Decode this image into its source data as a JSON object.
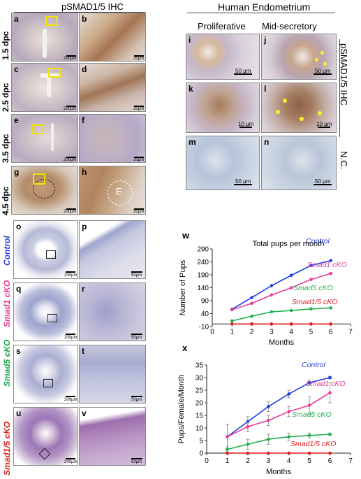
{
  "ihc_section": {
    "title": "pSMAD1/5 IHC",
    "rows": [
      {
        "label": "1.5 dpc",
        "left": "a",
        "right": "b",
        "left_scale": "200µm",
        "right_scale": "20µm"
      },
      {
        "label": "2.5 dpc",
        "left": "c",
        "right": "d",
        "left_scale": "200µm",
        "right_scale": "20µm"
      },
      {
        "label": "3.5 dpc",
        "left": "e",
        "right": "f",
        "left_scale": "200µm",
        "right_scale": "20µm"
      },
      {
        "label": "4.5 dpc",
        "left": "g",
        "right": "h",
        "left_scale": "200µm",
        "right_scale": "50µm"
      }
    ],
    "embryo_label": "E"
  },
  "human_section": {
    "title": "Human Endometrium",
    "col_proliferative": "Proliferative",
    "col_midsecretory": "Mid-secretory",
    "side_ihc": "pSMAD1/5 IHC",
    "side_nc": "N.C.",
    "panels": [
      {
        "id": "i",
        "scale": "50 µm"
      },
      {
        "id": "j",
        "scale": "50 µm"
      },
      {
        "id": "k",
        "scale": "10 µm"
      },
      {
        "id": "l",
        "scale": "10 µm"
      },
      {
        "id": "m",
        "scale": "50 µm"
      },
      {
        "id": "n",
        "scale": "50 µm"
      }
    ]
  },
  "histology_section": {
    "rows": [
      {
        "label": "Control",
        "color": "#2a3bd6",
        "left": "o",
        "right": "p",
        "left_scale": "200µm",
        "right_scale": "50µm"
      },
      {
        "label": "Smad1 cKO",
        "color": "#e6388f",
        "left": "q",
        "right": "r",
        "left_scale": "200µm",
        "right_scale": "50µm"
      },
      {
        "label": "Smad5 cKO",
        "color": "#19a84a",
        "left": "s",
        "right": "t",
        "left_scale": "200µm",
        "right_scale": "50µm"
      },
      {
        "label": "Smad1/5 cKO",
        "color": "#e0201b",
        "left": "u",
        "right": "v",
        "left_scale": "200µm",
        "right_scale": "50µm"
      }
    ]
  },
  "chart_data": [
    {
      "panel": "w",
      "type": "line",
      "title": "Total pups per month",
      "xlabel": "Months",
      "ylabel": "Number of Pups",
      "xlim": [
        0,
        7
      ],
      "ylim": [
        -10,
        290
      ],
      "xticks": [
        "0",
        "1",
        "2",
        "3",
        "4",
        "5",
        "6",
        "7"
      ],
      "yticks": [
        "-10",
        "40",
        "90",
        "140",
        "190",
        "240",
        "290"
      ],
      "x": [
        1,
        2,
        3,
        4,
        5,
        6
      ],
      "series": [
        {
          "name": "Control",
          "color": "#1f3de0",
          "values": [
            57,
            102,
            148,
            188,
            226,
            245
          ]
        },
        {
          "name": "Smad1 cKO",
          "color": "#ec3b9a",
          "values": [
            55,
            80,
            112,
            140,
            172,
            195
          ]
        },
        {
          "name": "Smad5 cKO",
          "color": "#21b04e",
          "values": [
            12,
            30,
            47,
            52,
            58,
            62
          ]
        },
        {
          "name": "Smad1/5 cKO",
          "color": "#e51b1b",
          "values": [
            0,
            0,
            0,
            0,
            0,
            0
          ]
        }
      ]
    },
    {
      "panel": "x",
      "type": "line",
      "xlabel": "Months",
      "ylabel": "Pups/Female/Month",
      "xlim": [
        0,
        7
      ],
      "ylim": [
        0,
        35
      ],
      "xticks": [
        "0",
        "1",
        "2",
        "3",
        "4",
        "5",
        "6",
        "7"
      ],
      "yticks": [
        "0",
        "5",
        "10",
        "15",
        "20",
        "25",
        "30",
        "35"
      ],
      "x": [
        1,
        2,
        3,
        4,
        5,
        6
      ],
      "series": [
        {
          "name": "Control",
          "color": "#1f3de0",
          "values": [
            6.5,
            12.5,
            18.5,
            23.5,
            28,
            30
          ],
          "errors": [
            5,
            2,
            2,
            1.5,
            1,
            0.5
          ]
        },
        {
          "name": "Smad1 cKO",
          "color": "#ec3b9a",
          "values": [
            6.5,
            10.5,
            13,
            16.5,
            19,
            24
          ],
          "errors": [
            5,
            2,
            2,
            2,
            3.5,
            4
          ]
        },
        {
          "name": "Smad5 cKO",
          "color": "#21b04e",
          "values": [
            1.5,
            3.5,
            5.5,
            6.5,
            7,
            7.5
          ],
          "errors": [
            1,
            2,
            2,
            1.5,
            1,
            0.5
          ]
        },
        {
          "name": "Smad1/5 cKO",
          "color": "#e51b1b",
          "values": [
            0,
            0,
            0,
            0,
            0,
            0
          ],
          "errors": [
            0,
            0,
            0,
            0,
            0,
            0
          ]
        }
      ]
    }
  ]
}
